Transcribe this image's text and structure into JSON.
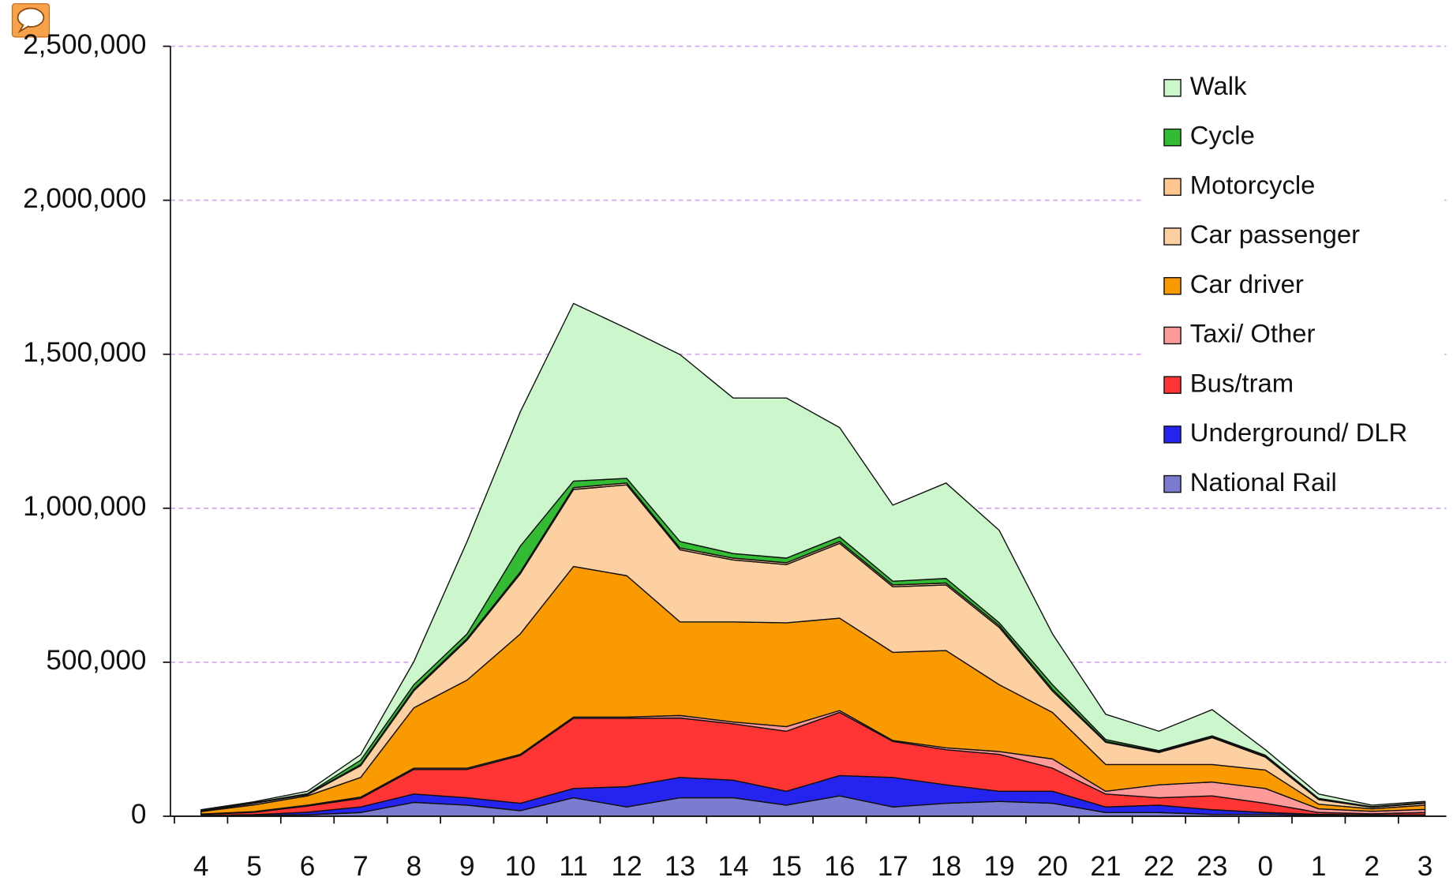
{
  "chart_data": {
    "type": "stacked_area",
    "categories": [
      "4",
      "5",
      "6",
      "7",
      "8",
      "9",
      "10",
      "11",
      "12",
      "13",
      "14",
      "15",
      "16",
      "17",
      "18",
      "19",
      "20",
      "21",
      "22",
      "23",
      "0",
      "1",
      "2",
      "3"
    ],
    "ylim": [
      0,
      2500000
    ],
    "yticks": [
      0,
      {
        "value": 500000,
        "label": "500,000"
      },
      {
        "value": 1000000,
        "label": "1,000,000"
      },
      {
        "value": 1500000,
        "label": "1,500,000"
      },
      {
        "value": 2000000,
        "label": "2,000,000"
      },
      {
        "value": 2500000,
        "label": "2,500,000"
      }
    ],
    "grid": true,
    "legend": "upper right",
    "series": [
      {
        "name": "National Rail",
        "color": "#7b7bd0",
        "values": [
          2000,
          3000,
          5000,
          12000,
          45000,
          36000,
          18000,
          60000,
          30000,
          60000,
          60000,
          36000,
          66000,
          30000,
          42000,
          48000,
          42000,
          12000,
          12000,
          6000,
          6000,
          3000,
          2000,
          2000
        ]
      },
      {
        "name": "Underground/ DLR",
        "color": "#2424ee",
        "values": [
          1000,
          2000,
          8000,
          18000,
          27000,
          24000,
          24000,
          30000,
          66000,
          66000,
          57000,
          45000,
          66000,
          96000,
          60000,
          33000,
          39000,
          18000,
          24000,
          15000,
          6000,
          3000,
          2000,
          2000
        ]
      },
      {
        "name": "Bus/tram",
        "color": "#ff3434",
        "values": [
          3000,
          8000,
          20000,
          28000,
          80000,
          92000,
          155000,
          228000,
          222000,
          193000,
          183000,
          195000,
          205000,
          117000,
          114000,
          120000,
          75000,
          42000,
          24000,
          45000,
          30000,
          6000,
          4000,
          8000
        ]
      },
      {
        "name": "Taxi/ Other",
        "color": "#ff9a9a",
        "values": [
          1000,
          2000,
          3000,
          4000,
          4000,
          4000,
          4000,
          4000,
          4000,
          8000,
          6000,
          15000,
          6000,
          3000,
          6000,
          9000,
          30000,
          9000,
          42000,
          45000,
          48000,
          12000,
          8000,
          10000
        ]
      },
      {
        "name": "Car driver",
        "color": "#f99a00",
        "values": [
          8000,
          22000,
          30000,
          64000,
          196000,
          286000,
          391000,
          489000,
          459000,
          304000,
          325000,
          337000,
          300000,
          286000,
          316000,
          217000,
          151000,
          87000,
          66000,
          57000,
          60000,
          15000,
          8000,
          14000
        ]
      },
      {
        "name": "Car passenger",
        "color": "#fdd0a2",
        "values": [
          2000,
          5000,
          4000,
          38000,
          55000,
          130000,
          195000,
          250000,
          295000,
          234000,
          201000,
          189000,
          243000,
          213000,
          213000,
          186000,
          69000,
          72000,
          39000,
          87000,
          42000,
          15000,
          5000,
          6000
        ]
      },
      {
        "name": "Motorcycle",
        "color": "#ffc690",
        "values": [
          1000,
          1000,
          1000,
          4000,
          5000,
          5000,
          6000,
          6000,
          6000,
          6000,
          6000,
          6000,
          6000,
          6000,
          6000,
          6000,
          6000,
          3000,
          3000,
          3000,
          3000,
          2000,
          1000,
          1000
        ]
      },
      {
        "name": "Cycle",
        "color": "#33bb33",
        "values": [
          1000,
          1000,
          2000,
          14000,
          15000,
          15000,
          84000,
          21000,
          15000,
          21000,
          15000,
          15000,
          15000,
          12000,
          15000,
          9000,
          15000,
          6000,
          3000,
          3000,
          3000,
          2000,
          1000,
          1000
        ]
      },
      {
        "name": "Walk",
        "color": "#ccf7cc",
        "values": [
          2000,
          3000,
          8000,
          18000,
          75000,
          300000,
          436000,
          577000,
          487000,
          607000,
          505000,
          520000,
          355000,
          247000,
          310000,
          300000,
          165000,
          82000,
          63000,
          85000,
          18000,
          14000,
          5000,
          4000
        ]
      }
    ]
  }
}
